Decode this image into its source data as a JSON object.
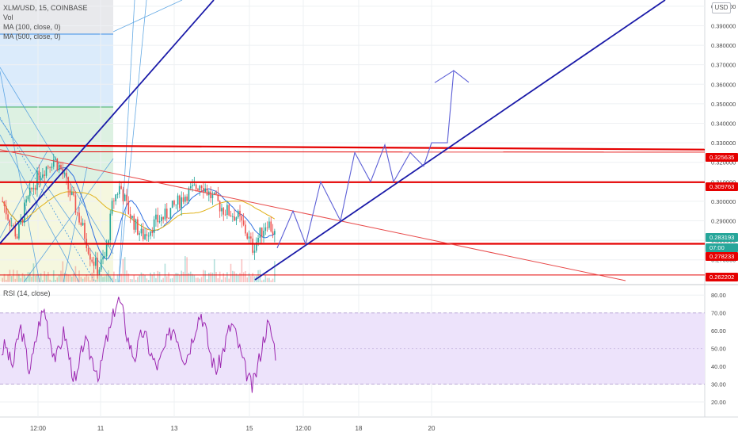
{
  "header": {
    "symbol_line": "XLM/USD, 15, COINBASE",
    "vol_label": "Vol",
    "ma100_label": "MA (100, close, 0)",
    "ma500_label": "MA (500, close, 0)",
    "currency_badge": "USD"
  },
  "colors": {
    "up": "#26a69a",
    "down": "#ef5350",
    "support_resistance": "#e50000",
    "trendline": "#1a1aa8",
    "projection": "#5c5fd6",
    "rsi_line": "#9c27b0",
    "rsi_band": "#ede3fb",
    "price_badge_red": "#e50000",
    "price_badge_green": "#26a69a"
  },
  "chart_data": [
    {
      "type": "candlestick",
      "title": "XLM/USD, 15, COINBASE",
      "ylim": [
        0.2585,
        0.4032
      ],
      "y_ticks": [
        "0.400000",
        "0.390000",
        "0.380000",
        "0.370000",
        "0.360000",
        "0.350000",
        "0.340000",
        "0.330000",
        "0.320000",
        "0.310000",
        "0.300000",
        "0.290000",
        "0.280000",
        "0.270000"
      ],
      "y_tick_values": [
        0.4,
        0.39,
        0.38,
        0.37,
        0.36,
        0.35,
        0.34,
        0.33,
        0.32,
        0.31,
        0.3,
        0.29,
        0.28,
        0.27
      ],
      "x_ticks": [
        "12:00",
        "11",
        "13",
        "15",
        "12:00",
        "18",
        "20"
      ],
      "horizontal_levels": [
        0.3256,
        0.3098,
        0.2782,
        0.2622
      ],
      "price_labels": [
        {
          "text": "0.325635",
          "value": 0.325635,
          "color": "red"
        },
        {
          "text": "0.309763",
          "value": 0.309763,
          "color": "red"
        },
        {
          "text": "0.283193",
          "value": 0.283193,
          "color": "green"
        },
        {
          "text": "07:00",
          "value": 0.28,
          "color": "green"
        },
        {
          "text": "0.278233",
          "value": 0.278233,
          "color": "red"
        },
        {
          "text": "0.262202",
          "value": 0.262202,
          "color": "red"
        }
      ],
      "price_series_approx": [
        0.3,
        0.29,
        0.282,
        0.296,
        0.306,
        0.314,
        0.318,
        0.322,
        0.316,
        0.306,
        0.296,
        0.285,
        0.272,
        0.265,
        0.272,
        0.3,
        0.308,
        0.296,
        0.288,
        0.282,
        0.286,
        0.29,
        0.292,
        0.296,
        0.3,
        0.304,
        0.306,
        0.31,
        0.304,
        0.3,
        0.296,
        0.294,
        0.292,
        0.285,
        0.276,
        0.283,
        0.29,
        0.283
      ],
      "projection_path": [
        0.276,
        0.295,
        0.278,
        0.31,
        0.29,
        0.325,
        0.31,
        0.329,
        0.31,
        0.325,
        0.318,
        0.33,
        0.33,
        0.367,
        0.361
      ]
    },
    {
      "type": "line",
      "title": "RSI (14, close)",
      "ylim": [
        12,
        85
      ],
      "y_ticks": [
        "80.00",
        "70.00",
        "60.00",
        "50.00",
        "40.00",
        "30.00",
        "20.00"
      ],
      "y_tick_values": [
        80,
        70,
        60,
        50,
        40,
        30,
        20
      ],
      "band": [
        30,
        70
      ],
      "midline": 50,
      "rsi_values_approx": [
        48,
        52,
        44,
        40,
        55,
        62,
        50,
        38,
        45,
        58,
        68,
        72,
        60,
        50,
        44,
        52,
        60,
        48,
        38,
        30,
        42,
        55,
        50,
        45,
        40,
        34,
        48,
        56,
        62,
        74,
        78,
        70,
        58,
        50,
        45,
        52,
        60,
        55,
        48,
        42,
        40,
        46,
        52,
        58,
        62,
        56,
        48,
        44,
        50,
        58,
        66,
        70,
        62,
        50,
        42,
        38,
        44,
        52,
        60,
        64,
        56,
        48,
        40,
        34,
        28,
        36,
        46,
        56,
        64,
        58,
        48
      ]
    }
  ]
}
